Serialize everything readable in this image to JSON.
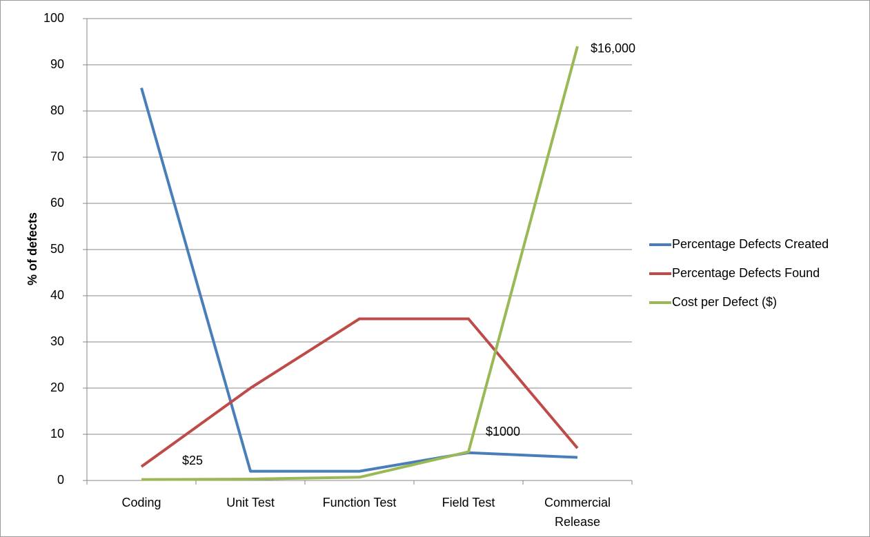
{
  "chart_data": {
    "type": "line",
    "y_label": "% of defects",
    "categories": [
      "Coding",
      "Unit Test",
      "Function Test",
      "Field Test",
      "Commercial Release"
    ],
    "series": [
      {
        "name": "Percentage Defects Created",
        "color": "#4a7ebb",
        "values": [
          85,
          2,
          2,
          6,
          5
        ]
      },
      {
        "name": "Percentage Defects Found",
        "color": "#be4b48",
        "values": [
          3,
          20,
          35,
          35,
          7
        ]
      },
      {
        "name": "Cost per Defect ($)",
        "color": "#98b954",
        "values": [
          0.2,
          0.3,
          0.7,
          6.2,
          94
        ]
      }
    ],
    "annotations": [
      "$25",
      "$1000",
      "$16,000"
    ],
    "ylim": [
      0,
      100
    ],
    "yticks": [
      0,
      10,
      20,
      30,
      40,
      50,
      60,
      70,
      80,
      90,
      100
    ],
    "grid": true,
    "legend": "right"
  }
}
